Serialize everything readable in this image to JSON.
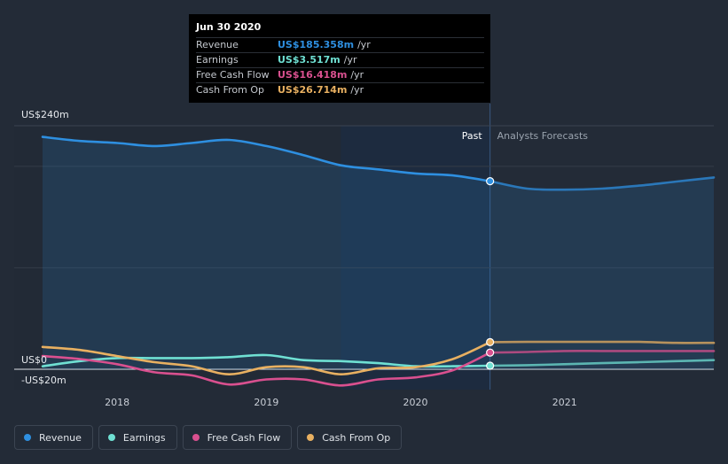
{
  "tooltip": {
    "date": "Jun 30 2020",
    "rows": [
      {
        "label": "Revenue",
        "value": "US$185.358m",
        "unit": "/yr",
        "color": "#2e8fe0"
      },
      {
        "label": "Earnings",
        "value": "US$3.517m",
        "unit": "/yr",
        "color": "#6fe0d3"
      },
      {
        "label": "Free Cash Flow",
        "value": "US$16.418m",
        "unit": "/yr",
        "color": "#d9508f"
      },
      {
        "label": "Cash From Op",
        "value": "US$26.714m",
        "unit": "/yr",
        "color": "#e8b061"
      }
    ]
  },
  "legend": [
    {
      "label": "Revenue",
      "color": "#2e8fe0"
    },
    {
      "label": "Earnings",
      "color": "#6fe0d3"
    },
    {
      "label": "Free Cash Flow",
      "color": "#d9508f"
    },
    {
      "label": "Cash From Op",
      "color": "#e8b061"
    }
  ],
  "chart_data": {
    "type": "line",
    "past_label": "Past",
    "forecast_label": "Analysts Forecasts",
    "y_labels": [
      {
        "text": "US$240m",
        "value": 240
      },
      {
        "text": "US$0",
        "value": 0
      },
      {
        "text": "-US$20m",
        "value": -20
      }
    ],
    "ylim": [
      -20,
      240
    ],
    "xlim": [
      2017.5,
      2022.0
    ],
    "x_ticks": [
      {
        "text": "2018",
        "value": 2018
      },
      {
        "text": "2019",
        "value": 2019
      },
      {
        "text": "2020",
        "value": 2020
      },
      {
        "text": "2021",
        "value": 2021
      }
    ],
    "grid_values": [
      200,
      100,
      0
    ],
    "highlight_start": 2019.5,
    "past_end": 2020.5,
    "series": [
      {
        "name": "Revenue",
        "color": "#2e8fe0",
        "fill": true,
        "points": [
          [
            2017.5,
            229
          ],
          [
            2017.75,
            225
          ],
          [
            2018.0,
            223
          ],
          [
            2018.25,
            220
          ],
          [
            2018.5,
            223
          ],
          [
            2018.75,
            226
          ],
          [
            2019.0,
            220
          ],
          [
            2019.25,
            211
          ],
          [
            2019.5,
            201
          ],
          [
            2019.75,
            197
          ],
          [
            2020.0,
            193
          ],
          [
            2020.25,
            191
          ],
          [
            2020.5,
            185.358
          ],
          [
            2020.75,
            178
          ],
          [
            2021.0,
            177
          ],
          [
            2021.25,
            178
          ],
          [
            2021.5,
            181
          ],
          [
            2021.75,
            185
          ],
          [
            2022.0,
            189
          ]
        ]
      },
      {
        "name": "Earnings",
        "color": "#6fe0d3",
        "fill": false,
        "points": [
          [
            2017.5,
            3
          ],
          [
            2017.75,
            8
          ],
          [
            2018.0,
            11
          ],
          [
            2018.25,
            11
          ],
          [
            2018.5,
            11
          ],
          [
            2018.75,
            12
          ],
          [
            2019.0,
            14
          ],
          [
            2019.25,
            9
          ],
          [
            2019.5,
            8
          ],
          [
            2019.75,
            6
          ],
          [
            2020.0,
            3
          ],
          [
            2020.25,
            3
          ],
          [
            2020.5,
            3.517
          ],
          [
            2020.75,
            4
          ],
          [
            2021.0,
            5
          ],
          [
            2021.25,
            6
          ],
          [
            2021.5,
            7
          ],
          [
            2021.75,
            8
          ],
          [
            2022.0,
            9
          ]
        ]
      },
      {
        "name": "Free Cash Flow",
        "color": "#d9508f",
        "fill": false,
        "points": [
          [
            2017.5,
            13
          ],
          [
            2017.75,
            10
          ],
          [
            2018.0,
            5
          ],
          [
            2018.25,
            -3
          ],
          [
            2018.5,
            -6
          ],
          [
            2018.75,
            -15
          ],
          [
            2019.0,
            -10
          ],
          [
            2019.25,
            -10
          ],
          [
            2019.5,
            -16
          ],
          [
            2019.75,
            -10
          ],
          [
            2020.0,
            -8
          ],
          [
            2020.25,
            -1
          ],
          [
            2020.5,
            16.418
          ],
          [
            2020.75,
            17
          ],
          [
            2021.0,
            18
          ],
          [
            2021.25,
            18
          ],
          [
            2021.5,
            18
          ],
          [
            2021.75,
            18
          ],
          [
            2022.0,
            18
          ]
        ]
      },
      {
        "name": "Cash From Op",
        "color": "#e8b061",
        "fill": false,
        "points": [
          [
            2017.5,
            22
          ],
          [
            2017.75,
            19
          ],
          [
            2018.0,
            13
          ],
          [
            2018.25,
            7
          ],
          [
            2018.5,
            3
          ],
          [
            2018.75,
            -5
          ],
          [
            2019.0,
            2
          ],
          [
            2019.25,
            2
          ],
          [
            2019.5,
            -5
          ],
          [
            2019.75,
            1
          ],
          [
            2020.0,
            2
          ],
          [
            2020.25,
            10
          ],
          [
            2020.5,
            26.714
          ],
          [
            2020.75,
            27
          ],
          [
            2021.0,
            27
          ],
          [
            2021.25,
            27
          ],
          [
            2021.5,
            27
          ],
          [
            2021.75,
            26
          ],
          [
            2022.0,
            26
          ]
        ]
      }
    ]
  }
}
